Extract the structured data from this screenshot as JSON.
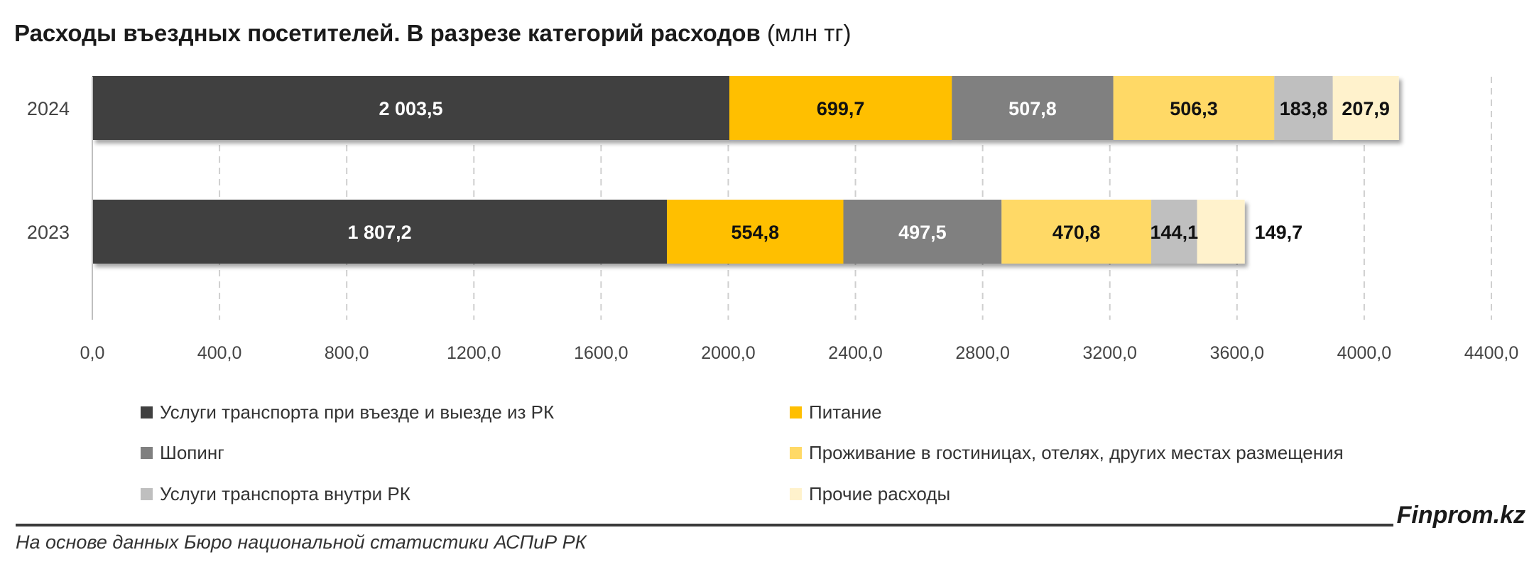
{
  "title": {
    "main": "Расходы въездных посетителей. В разрезе категорий расходов",
    "unit": "(млн тг)"
  },
  "chart_data": {
    "type": "bar",
    "orientation": "horizontal",
    "stacked": true,
    "categories": [
      "2024",
      "2023"
    ],
    "xlim": [
      0,
      4400
    ],
    "x_ticks": [
      "0,0",
      "400,0",
      "800,0",
      "1200,0",
      "1600,0",
      "2000,0",
      "2400,0",
      "2800,0",
      "3200,0",
      "3600,0",
      "4000,0",
      "4400,0"
    ],
    "grid": "vertical dashed",
    "legend_position": "bottom",
    "series": [
      {
        "name": "Услуги транспорта при въезде и выезде из РК",
        "color": "#404040",
        "values": [
          2003.5,
          1807.2
        ],
        "labels": [
          "2 003,5",
          "1 807,2"
        ]
      },
      {
        "name": "Питание",
        "color": "#FFBF00",
        "values": [
          699.7,
          554.8
        ],
        "labels": [
          "699,7",
          "554,8"
        ]
      },
      {
        "name": "Шопинг",
        "color": "#808080",
        "values": [
          507.8,
          497.5
        ],
        "labels": [
          "507,8",
          "497,5"
        ]
      },
      {
        "name": "Проживание в гостиницах, отелях, других местах размещения",
        "color": "#FFD966",
        "values": [
          506.3,
          470.8
        ],
        "labels": [
          "506,3",
          "470,8"
        ]
      },
      {
        "name": "Услуги транспорта внутри РК",
        "color": "#BFBFBF",
        "values": [
          183.8,
          144.1
        ],
        "labels": [
          "183,8",
          "144,1"
        ]
      },
      {
        "name": "Прочие расходы",
        "color": "#FFF2CC",
        "values": [
          207.9,
          149.7
        ],
        "labels": [
          "207,9",
          "149,7"
        ]
      }
    ]
  },
  "footer": {
    "brand": "Finprom.kz",
    "source": "На основе данных Бюро национальной статистики АСПиР РК"
  }
}
